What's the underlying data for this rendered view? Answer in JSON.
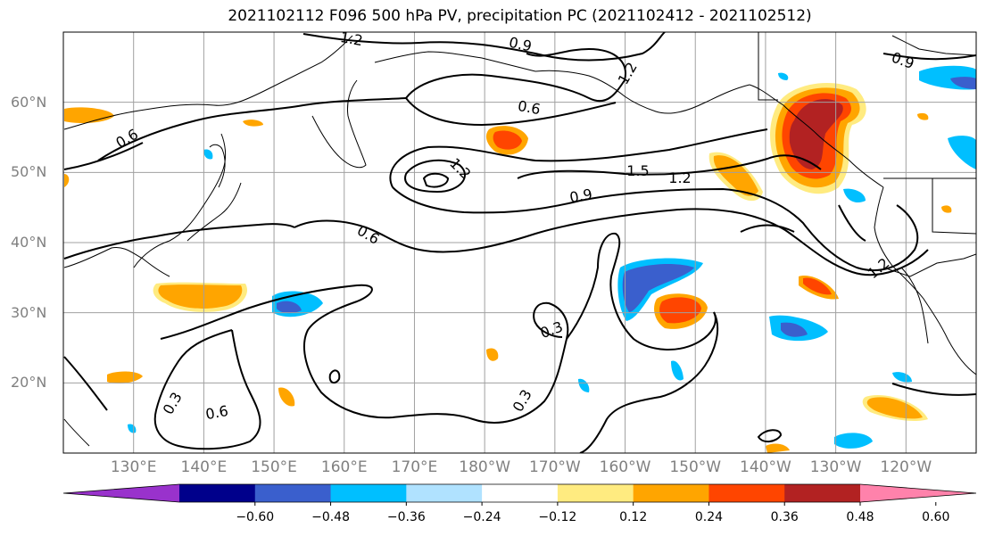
{
  "title": "2021102112 F096 500 hPa PV, precipitation PC (2021102412 - 2021102512)",
  "map": {
    "lat_labels": [
      {
        "label": "60°N",
        "lat": 60
      },
      {
        "label": "50°N",
        "lat": 50
      },
      {
        "label": "40°N",
        "lat": 40
      },
      {
        "label": "30°N",
        "lat": 30
      },
      {
        "label": "20°N",
        "lat": 20
      }
    ],
    "lon_labels": [
      {
        "label": "130°E",
        "lon": 130
      },
      {
        "label": "140°E",
        "lon": 140
      },
      {
        "label": "150°E",
        "lon": 150
      },
      {
        "label": "160°E",
        "lon": 160
      },
      {
        "label": "170°E",
        "lon": 170
      },
      {
        "label": "180°W",
        "lon": 180
      },
      {
        "label": "170°W",
        "lon": 190
      },
      {
        "label": "160°W",
        "lon": 200
      },
      {
        "label": "150°W",
        "lon": 210
      },
      {
        "label": "140°W",
        "lon": 220
      },
      {
        "label": "130°W",
        "lon": 230
      },
      {
        "label": "120°W",
        "lon": 240
      }
    ],
    "extent": {
      "lon_min": 120,
      "lon_max": 250,
      "lat_min": 10,
      "lat_max": 70
    },
    "pv_contour_labels": [
      "1.2",
      "0.9",
      "1.2",
      "0.6",
      "0.6",
      "1.2",
      "1.5",
      "1.2",
      "0.9",
      "0.6",
      "0.9",
      "1.2",
      "0.3",
      "0.3",
      "0.3",
      "0.6"
    ],
    "contour_color": "#000000",
    "gridline_color": "#a0a0a0"
  },
  "colorbar": {
    "ticks": [
      "−0.60",
      "−0.48",
      "−0.36",
      "−0.24",
      "−0.12",
      "0.12",
      "0.24",
      "0.36",
      "0.48",
      "0.60"
    ],
    "colors": [
      "#9932cc",
      "#00008b",
      "#3a5fcd",
      "#00bfff",
      "#b0e2ff",
      "#ffffff",
      "#ffeb80",
      "#ffa500",
      "#ff4500",
      "#b22222",
      "#ff82ab"
    ]
  }
}
